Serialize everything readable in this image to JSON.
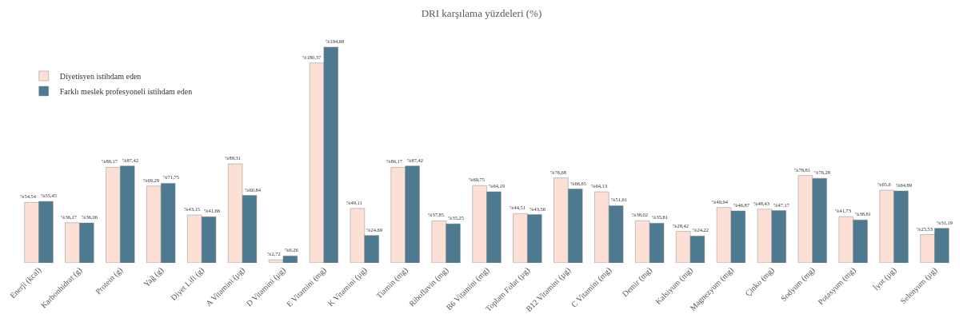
{
  "chart_data": {
    "type": "bar",
    "title": "DRI karşılama yüzdeleri (%)",
    "categories": [
      "Enerji (kcal)",
      "Karbonhidrat (g)",
      "Protein (g)",
      "Yağ (g)",
      "Diyet Lifi (g)",
      "A Vitamini (µg)",
      "D Vitamini (µg)",
      "E Vitamini (mg)",
      "K Vitamini (µg)",
      "Tiamin (mg)",
      "Riboflavin (mg)",
      "B6 Vitamini (mg)",
      "Toplam Folat (µg)",
      "B12 Vitamini (µg)",
      "C Vitamini (mg)",
      "Demir (mg)",
      "Kalsiyum (mg)",
      "Magnezyum (mg)",
      "Çinko (mg)",
      "Sodyum (mg)",
      "Potasyum (mg)",
      "İyot (µg)",
      "Selenyum (µg)"
    ],
    "series": [
      {
        "name": "Diyetisyen istihdam eden",
        "color": "#fce0d6",
        "values": [
          54.54,
          36.17,
          86.17,
          69.29,
          43.15,
          89.31,
          2.72,
          180.37,
          49.11,
          86.17,
          37.85,
          69.75,
          44.51,
          76.68,
          64.13,
          38.02,
          28.42,
          49.94,
          48.43,
          78.81,
          41.73,
          65.6,
          25.53
        ],
        "value_labels": [
          "%54,54",
          "%36,17",
          "%86,17",
          "%69,29",
          "%43,15",
          "%89,31",
          "%2,72",
          "%180,37",
          "%49,11",
          "%86,17",
          "%37,85",
          "%69,75",
          "%44,51",
          "%76,68",
          "%64,13",
          "%38,02",
          "%28,42",
          "%49,94",
          "%48,43",
          "%78,81",
          "%41,73",
          "%65,6",
          "%25,53"
        ]
      },
      {
        "name": "Farklı meslek profesyoneli istihdam eden",
        "color": "#4d7a90",
        "values": [
          55.45,
          36.06,
          87.42,
          71.75,
          41.66,
          60.84,
          6.26,
          194.68,
          24.69,
          87.42,
          35.25,
          64.19,
          43.56,
          66.65,
          51.61,
          35.81,
          24.22,
          46.87,
          47.17,
          76.28,
          38.81,
          64.89,
          31.19
        ],
        "value_labels": [
          "%55,45",
          "%36,06",
          "%87,42",
          "%71,75",
          "%41,66",
          "%60,84",
          "%6,26",
          "%194,68",
          "%24,69",
          "%87,42",
          "%35,25",
          "%64,19",
          "%43,56",
          "%66,65",
          "%51,61",
          "%35,81",
          "%24,22",
          "%46,87",
          "%47,17",
          "%76,28",
          "%38,81",
          "%64,89",
          "%31,19"
        ]
      }
    ],
    "legend": "top left"
  }
}
